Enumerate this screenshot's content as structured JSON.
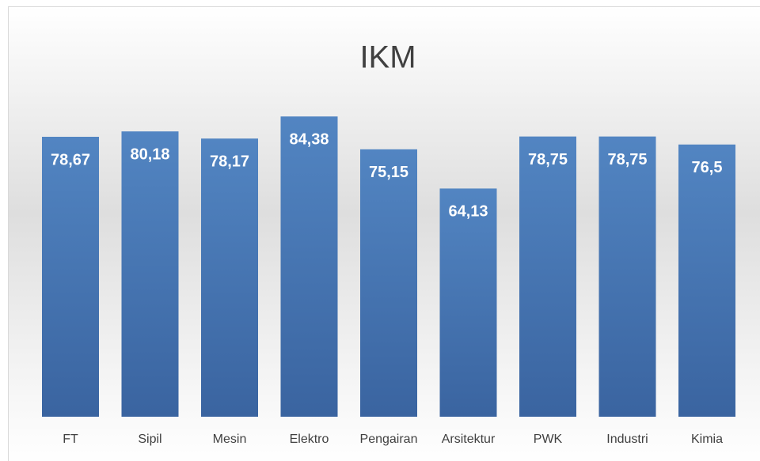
{
  "chart_data": {
    "type": "bar",
    "title": "IKM",
    "categories": [
      "FT",
      "Sipil",
      "Mesin",
      "Elektro",
      "Pengairan",
      "Arsitektur",
      "PWK",
      "Industri",
      "Kimia"
    ],
    "values": [
      78.67,
      80.18,
      78.17,
      84.38,
      75.15,
      64.13,
      78.75,
      78.75,
      76.5
    ],
    "value_labels": [
      "78,67",
      "80,18",
      "78,17",
      "84,38",
      "75,15",
      "64,13",
      "78,75",
      "78,75",
      "76,5"
    ],
    "color": "#4a7aba",
    "ylim": [
      0,
      90
    ],
    "grid": false
  }
}
